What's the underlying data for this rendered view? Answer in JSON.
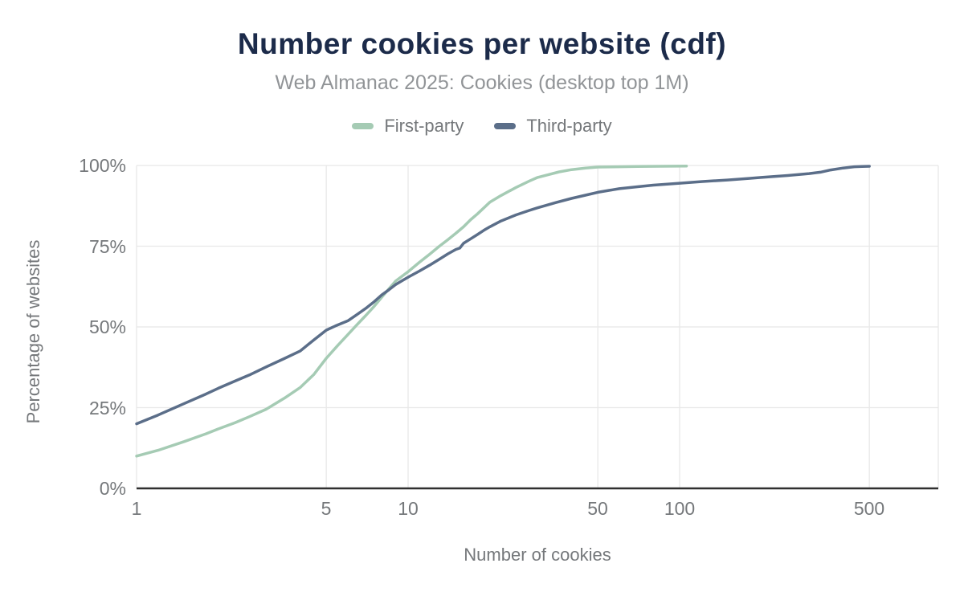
{
  "header": {
    "title": "Number cookies per website (cdf)",
    "subtitle": "Web Almanac 2025: Cookies (desktop top 1M)"
  },
  "colors": {
    "title": "#1c2b4a",
    "subtitle": "#919497",
    "tick_text": "#75787b",
    "grid": "#e8e8e8",
    "axis_line": "#2f2f2f",
    "first_party": "#a5cbb4",
    "third_party": "#5b6e89"
  },
  "chart_data": {
    "type": "line",
    "title": "Number cookies per website (cdf)",
    "subtitle": "Web Almanac 2025: Cookies (desktop top 1M)",
    "xlabel": "Number of cookies",
    "ylabel": "Percentage of websites",
    "x_scale": "log",
    "xlim": [
      1,
      897
    ],
    "ylim": [
      0,
      100
    ],
    "grid": true,
    "legend_position": "top",
    "x_ticks": [
      1,
      5,
      10,
      50,
      100,
      500
    ],
    "y_ticks": [
      {
        "value": 0,
        "label": "0%"
      },
      {
        "value": 25,
        "label": "25%"
      },
      {
        "value": 50,
        "label": "50%"
      },
      {
        "value": 75,
        "label": "75%"
      },
      {
        "value": 100,
        "label": "100%"
      }
    ],
    "series": [
      {
        "name": "First-party",
        "color": "#a5cbb4",
        "points": [
          [
            1,
            10
          ],
          [
            1.2,
            11.8
          ],
          [
            1.5,
            14.5
          ],
          [
            1.8,
            16.9
          ],
          [
            2,
            18.4
          ],
          [
            2.3,
            20.3
          ],
          [
            2.6,
            22.2
          ],
          [
            3,
            24.5
          ],
          [
            3.5,
            27.9
          ],
          [
            4,
            31.2
          ],
          [
            4.5,
            35.3
          ],
          [
            5,
            40.3
          ],
          [
            5.5,
            44.2
          ],
          [
            6,
            47.6
          ],
          [
            6.5,
            50.8
          ],
          [
            7,
            53.6
          ],
          [
            7.5,
            56.4
          ],
          [
            8,
            59.2
          ],
          [
            8.5,
            61.8
          ],
          [
            9,
            64.2
          ],
          [
            9.5,
            65.7
          ],
          [
            10,
            67.1
          ],
          [
            11,
            70
          ],
          [
            12,
            72.5
          ],
          [
            13,
            74.9
          ],
          [
            14,
            77
          ],
          [
            15,
            79
          ],
          [
            16,
            81
          ],
          [
            17,
            83.2
          ],
          [
            18,
            85
          ],
          [
            20,
            88.6
          ],
          [
            22,
            90.7
          ],
          [
            25,
            93.2
          ],
          [
            28,
            95.2
          ],
          [
            30,
            96.3
          ],
          [
            33,
            97.2
          ],
          [
            36,
            98
          ],
          [
            40,
            98.7
          ],
          [
            45,
            99.2
          ],
          [
            50,
            99.5
          ],
          [
            60,
            99.6
          ],
          [
            70,
            99.7
          ],
          [
            85,
            99.75
          ],
          [
            106,
            99.8
          ]
        ]
      },
      {
        "name": "Third-party",
        "color": "#5b6e89",
        "points": [
          [
            1,
            20
          ],
          [
            1.2,
            22.7
          ],
          [
            1.5,
            26.3
          ],
          [
            1.8,
            29.2
          ],
          [
            2,
            31
          ],
          [
            2.3,
            33.2
          ],
          [
            2.6,
            35.1
          ],
          [
            3,
            37.6
          ],
          [
            3.5,
            40.2
          ],
          [
            4,
            42.5
          ],
          [
            4.5,
            46
          ],
          [
            5,
            49
          ],
          [
            5.4,
            50.3
          ],
          [
            6,
            51.9
          ],
          [
            6.5,
            53.9
          ],
          [
            7,
            55.8
          ],
          [
            7.5,
            57.8
          ],
          [
            8,
            59.9
          ],
          [
            8.5,
            61.5
          ],
          [
            9,
            63.1
          ],
          [
            9.5,
            64.3
          ],
          [
            10,
            65.4
          ],
          [
            11,
            67.3
          ],
          [
            12,
            69.1
          ],
          [
            13,
            70.9
          ],
          [
            14,
            72.6
          ],
          [
            15,
            74
          ],
          [
            15.5,
            74.4
          ],
          [
            16,
            75.9
          ],
          [
            17,
            77.3
          ],
          [
            18,
            78.6
          ],
          [
            19,
            79.9
          ],
          [
            20,
            81
          ],
          [
            22,
            82.8
          ],
          [
            25,
            84.7
          ],
          [
            28,
            86.1
          ],
          [
            30,
            86.9
          ],
          [
            35,
            88.5
          ],
          [
            40,
            89.8
          ],
          [
            45,
            90.8
          ],
          [
            50,
            91.7
          ],
          [
            55,
            92.3
          ],
          [
            60,
            92.8
          ],
          [
            70,
            93.4
          ],
          [
            80,
            93.9
          ],
          [
            90,
            94.2
          ],
          [
            100,
            94.5
          ],
          [
            120,
            95
          ],
          [
            150,
            95.5
          ],
          [
            180,
            96
          ],
          [
            200,
            96.3
          ],
          [
            250,
            96.9
          ],
          [
            300,
            97.5
          ],
          [
            330,
            97.9
          ],
          [
            360,
            98.6
          ],
          [
            400,
            99.2
          ],
          [
            440,
            99.6
          ],
          [
            470,
            99.7
          ],
          [
            500,
            99.75
          ]
        ]
      }
    ]
  }
}
